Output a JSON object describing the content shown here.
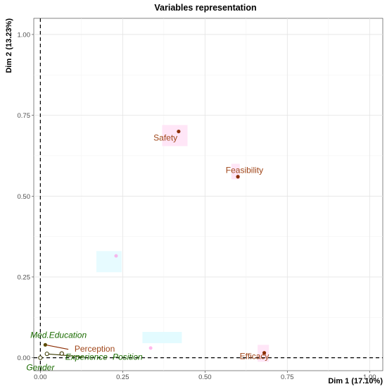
{
  "chart_data": {
    "type": "scatter",
    "title": "Variables representation",
    "xlabel": "Dim 1 (17.10%)",
    "ylabel": "Dim 2 (13.23%)",
    "xlim": [
      -0.02,
      1.04
    ],
    "ylim": [
      -0.04,
      1.05
    ],
    "x_ticks": [
      0.0,
      0.25,
      0.5,
      0.75,
      1.0
    ],
    "x_tick_labels": [
      "0.00",
      "0.25",
      "0.50",
      "0.75",
      "1.00"
    ],
    "y_ticks": [
      0.0,
      0.25,
      0.5,
      0.75,
      1.0
    ],
    "y_tick_labels": [
      "0.00",
      "0.25",
      "0.50",
      "0.75",
      "1.00"
    ],
    "grid": true,
    "reference_lines": {
      "x": 0,
      "y": 0,
      "style": "dashed"
    },
    "colors": {
      "active": "#8c2d04",
      "active_text": "#a0461a",
      "supplementary": "#1a6b00",
      "supplementary_dark": "#3a3a00",
      "ghost_highlight": "#ff8be0",
      "ghost_label_bg": "#ffe6f7",
      "ghost_label_bg_cyan": "#e3fbff"
    },
    "points": [
      {
        "name": "Safety",
        "x": 0.42,
        "y": 0.7,
        "group": "active",
        "label_dx": -0.04,
        "label_dy": -0.02
      },
      {
        "name": "Feasibility",
        "x": 0.6,
        "y": 0.56,
        "group": "active",
        "label_dx": 0.02,
        "label_dy": 0.02
      },
      {
        "name": "Efficacy",
        "x": 0.68,
        "y": 0.015,
        "group": "active",
        "label_dx": -0.03,
        "label_dy": -0.01
      },
      {
        "name": "Perception",
        "x": 0.065,
        "y": 0.013,
        "group": "active_open",
        "label_dx": 0.1,
        "label_dy": 0.015
      },
      {
        "name": "Med.Education",
        "x": 0.015,
        "y": 0.04,
        "group": "supplementary",
        "label_dx": 0.04,
        "label_dy": 0.03
      },
      {
        "name": "Experience",
        "x": 0.02,
        "y": 0.012,
        "group": "supplementary_open",
        "label_dx": 0.12,
        "label_dy": -0.01
      },
      {
        "name": "Position",
        "x": 0.065,
        "y": 0.013,
        "group": "supplementary_open",
        "label_dx": 0.2,
        "label_dy": -0.01
      },
      {
        "name": "Gender",
        "x": 0.0,
        "y": 0.0,
        "group": "supplementary_open",
        "label_dx": 0.0,
        "label_dy": -0.03
      }
    ],
    "ghost_marks": [
      {
        "x": 0.23,
        "y": 0.315
      },
      {
        "x": 0.335,
        "y": 0.03
      }
    ]
  }
}
